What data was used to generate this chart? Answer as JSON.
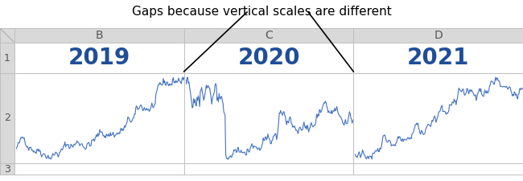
{
  "title_annotation": "Gaps because vertical scales are different",
  "col_headers": [
    "B",
    "C",
    "D"
  ],
  "row_labels": [
    "1",
    "2",
    "3"
  ],
  "year_labels": [
    "2019",
    "2020",
    "2021"
  ],
  "year_label_color": "#1F4E99",
  "line_color": "#4472C4",
  "line_width": 0.8,
  "background_color": "#FFFFFF",
  "header_bg": "#D9D9D9",
  "grid_color": "#BFBFBF",
  "annotation_color": "#000000",
  "annotation_fontsize": 11,
  "year_fontsize": 20,
  "header_fontsize": 10,
  "row_label_fontsize": 9
}
